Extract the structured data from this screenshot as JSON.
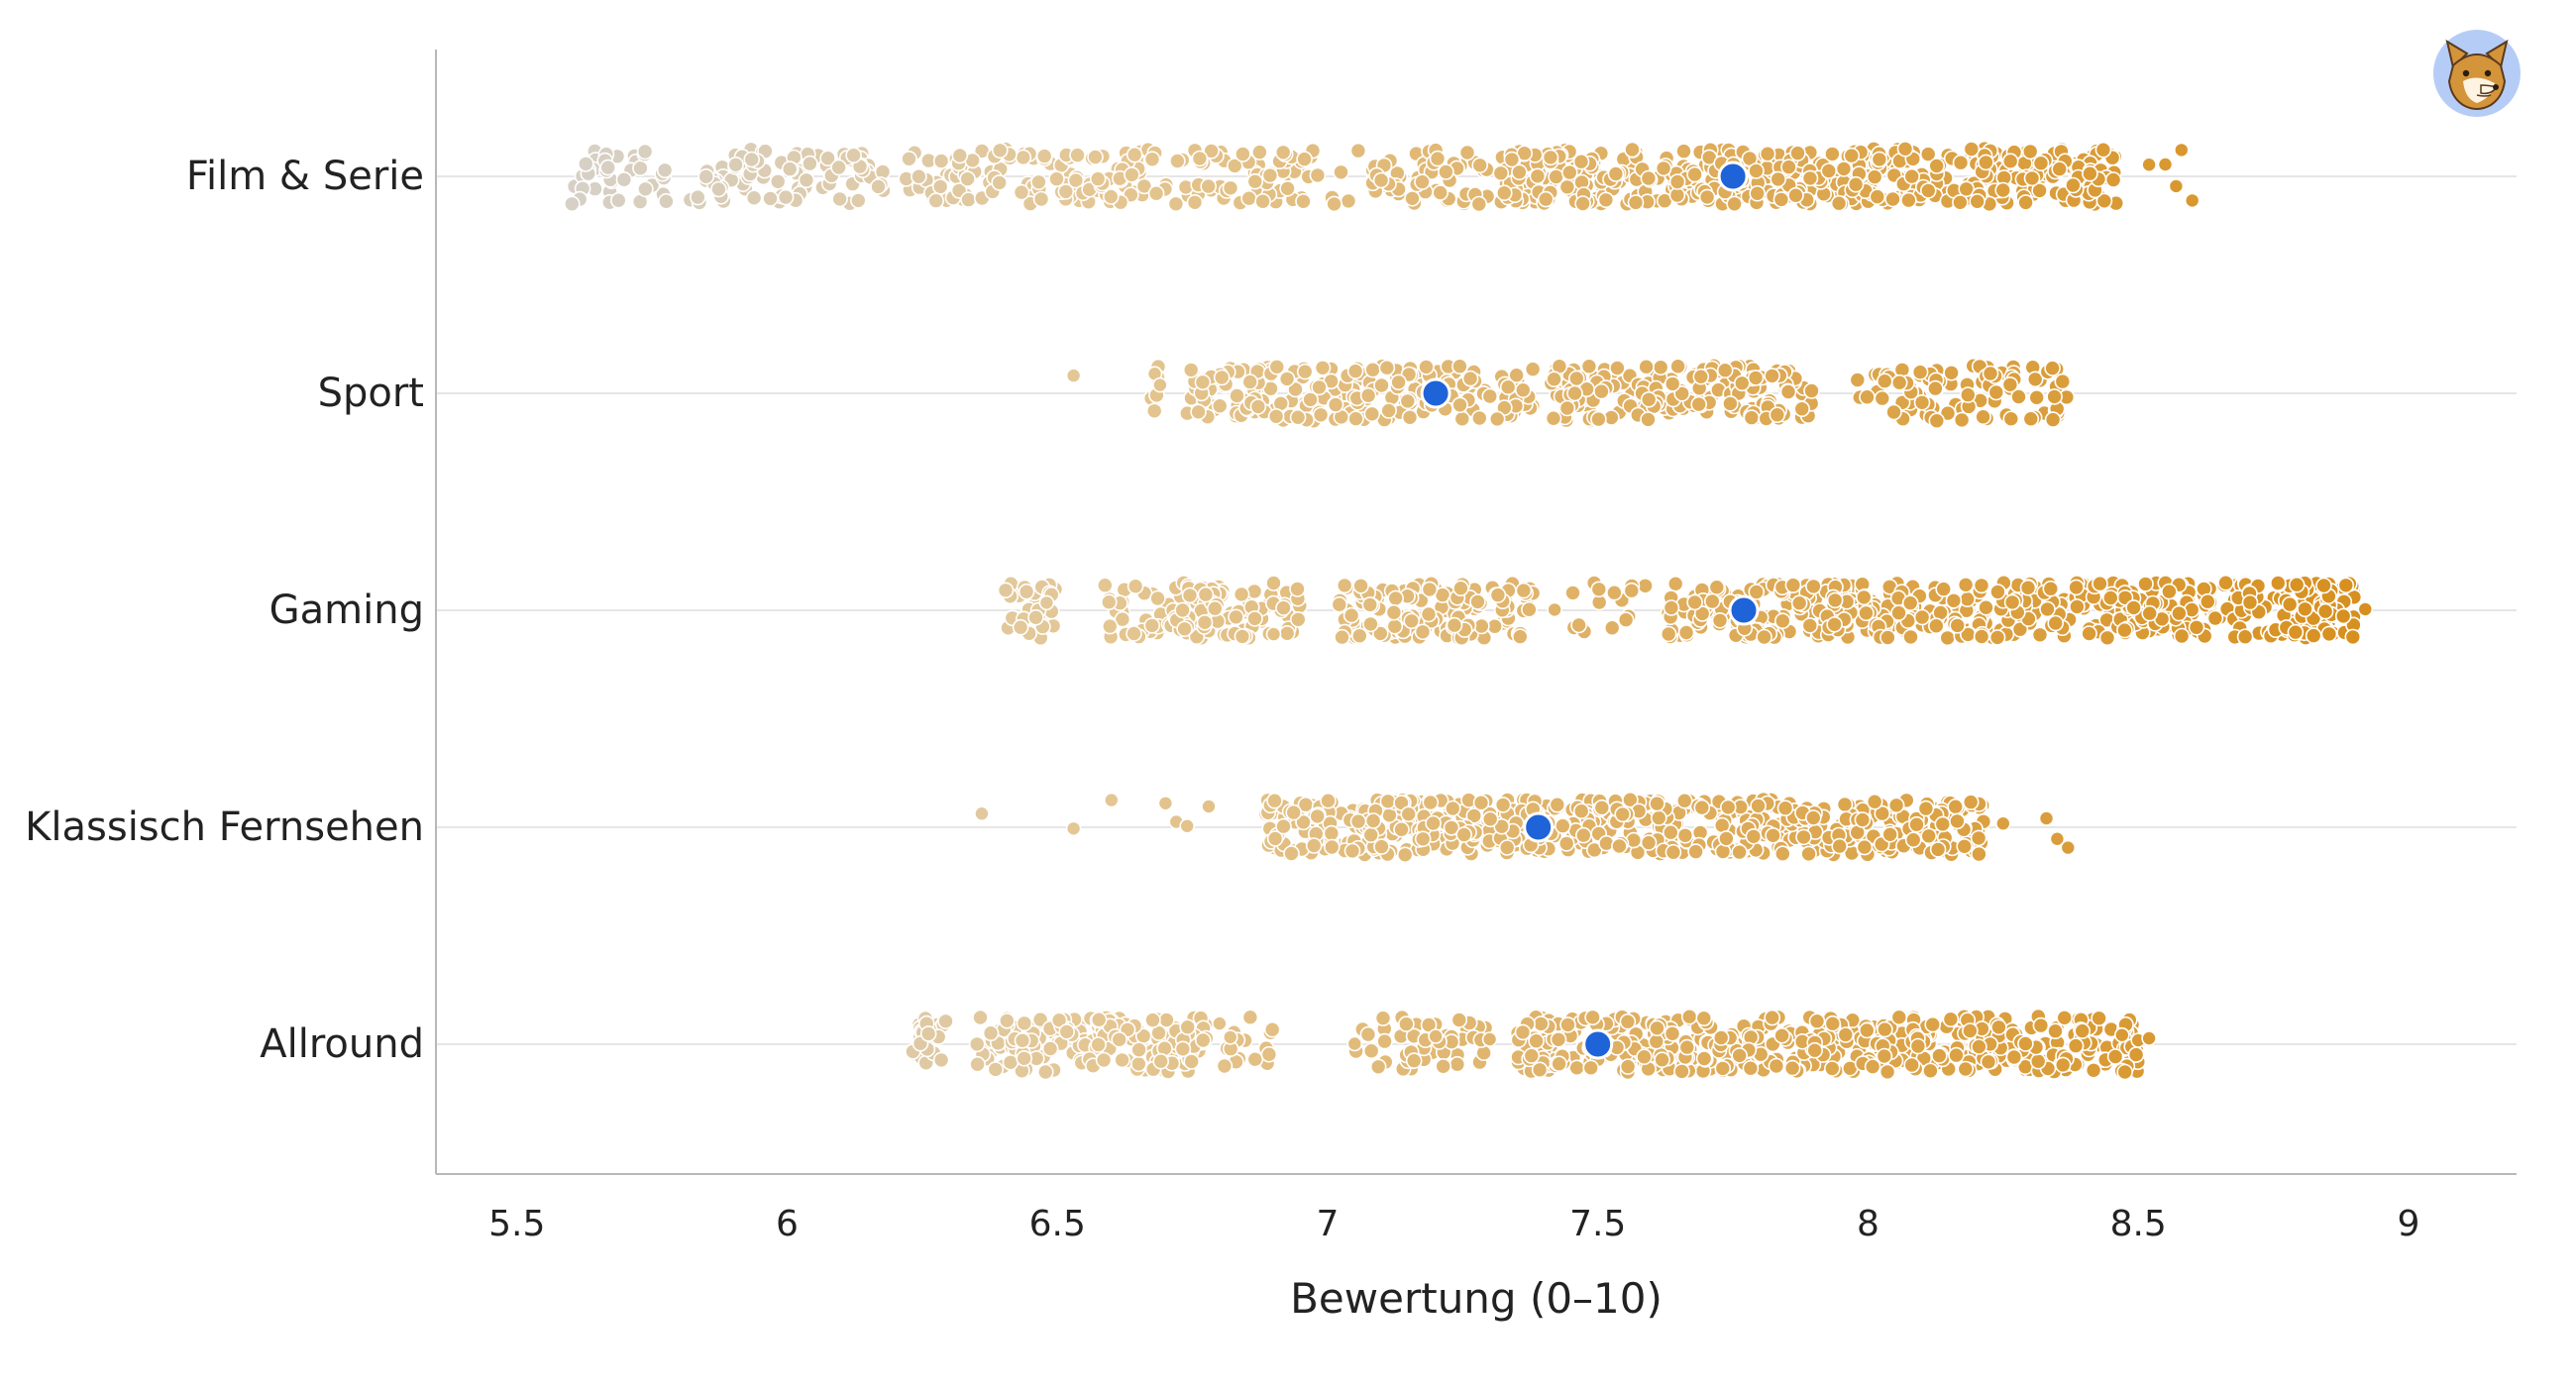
{
  "chart_data": {
    "type": "scatter",
    "subtype": "strip-plot with jittered points and mean marker",
    "xlabel": "Bewertung (0–10)",
    "ylabel": "",
    "xlim": [
      5.35,
      9.2
    ],
    "xticks": [
      5.5,
      6,
      6.5,
      7,
      7.5,
      8,
      8.5,
      9
    ],
    "xtick_labels": [
      "5.5",
      "6",
      "6.5",
      "7",
      "7.5",
      "8",
      "8.5",
      "9"
    ],
    "grid": "horizontal lines at each category",
    "legend": "none",
    "categories": [
      "Film & Serie",
      "Sport",
      "Gaming",
      "Klassisch Fernsehen",
      "Allround"
    ],
    "color_scale": {
      "low": "#d6d0c6",
      "mid": "#e4c692",
      "high": "#d7901f"
    },
    "mean_marker_color": "#1f63d8",
    "series": [
      {
        "category": "Film & Serie",
        "mean": 7.75,
        "range": [
          5.6,
          8.6
        ],
        "segments": [
          {
            "from": 5.6,
            "to": 5.78,
            "density": 40
          },
          {
            "from": 5.82,
            "to": 6.18,
            "density": 90
          },
          {
            "from": 6.22,
            "to": 7.3,
            "density": 260
          },
          {
            "from": 7.32,
            "to": 8.46,
            "density": 520
          }
        ],
        "outliers": [
          8.52,
          8.55,
          8.57,
          8.58,
          8.6
        ]
      },
      {
        "category": "Sport",
        "mean": 7.2,
        "range": [
          6.53,
          8.37
        ],
        "segments": [
          {
            "from": 6.67,
            "to": 6.7,
            "density": 5
          },
          {
            "from": 6.74,
            "to": 7.38,
            "density": 200
          },
          {
            "from": 7.41,
            "to": 7.9,
            "density": 180
          },
          {
            "from": 7.98,
            "to": 8.37,
            "density": 100
          }
        ],
        "outliers": [
          6.53,
          6.68,
          6.69
        ]
      },
      {
        "category": "Gaming",
        "mean": 7.77,
        "range": [
          6.35,
          8.92
        ],
        "segments": [
          {
            "from": 6.4,
            "to": 6.5,
            "density": 30
          },
          {
            "from": 6.58,
            "to": 6.95,
            "density": 140
          },
          {
            "from": 7.02,
            "to": 7.38,
            "density": 130
          },
          {
            "from": 7.45,
            "to": 7.6,
            "density": 15
          },
          {
            "from": 7.63,
            "to": 8.9,
            "density": 560
          }
        ],
        "outliers": [
          6.48,
          6.9,
          7.42,
          8.92
        ]
      },
      {
        "category": "Klassisch Fernsehen",
        "mean": 7.39,
        "range": [
          6.36,
          8.37
        ],
        "segments": [
          {
            "from": 6.88,
            "to": 8.22,
            "density": 620
          }
        ],
        "outliers": [
          6.36,
          6.53,
          6.6,
          6.7,
          6.72,
          6.74,
          6.78,
          8.25,
          8.33,
          8.35,
          8.37
        ]
      },
      {
        "category": "Allround",
        "mean": 7.5,
        "range": [
          6.22,
          8.54
        ],
        "segments": [
          {
            "from": 6.23,
            "to": 6.3,
            "density": 25
          },
          {
            "from": 6.35,
            "to": 6.78,
            "density": 170
          },
          {
            "from": 6.8,
            "to": 6.9,
            "density": 15
          },
          {
            "from": 7.05,
            "to": 7.3,
            "density": 50
          },
          {
            "from": 7.35,
            "to": 8.5,
            "density": 470
          }
        ],
        "outliers": [
          6.8,
          6.82,
          7.05,
          7.2,
          7.3,
          8.47,
          8.5,
          8.52
        ]
      }
    ]
  },
  "logo": {
    "name": "fox mascot logo",
    "colors": {
      "circle": "#b5cdf6",
      "fur": "#d4943a",
      "face_light": "#fff4e2",
      "outline": "#5a3a1e"
    }
  }
}
